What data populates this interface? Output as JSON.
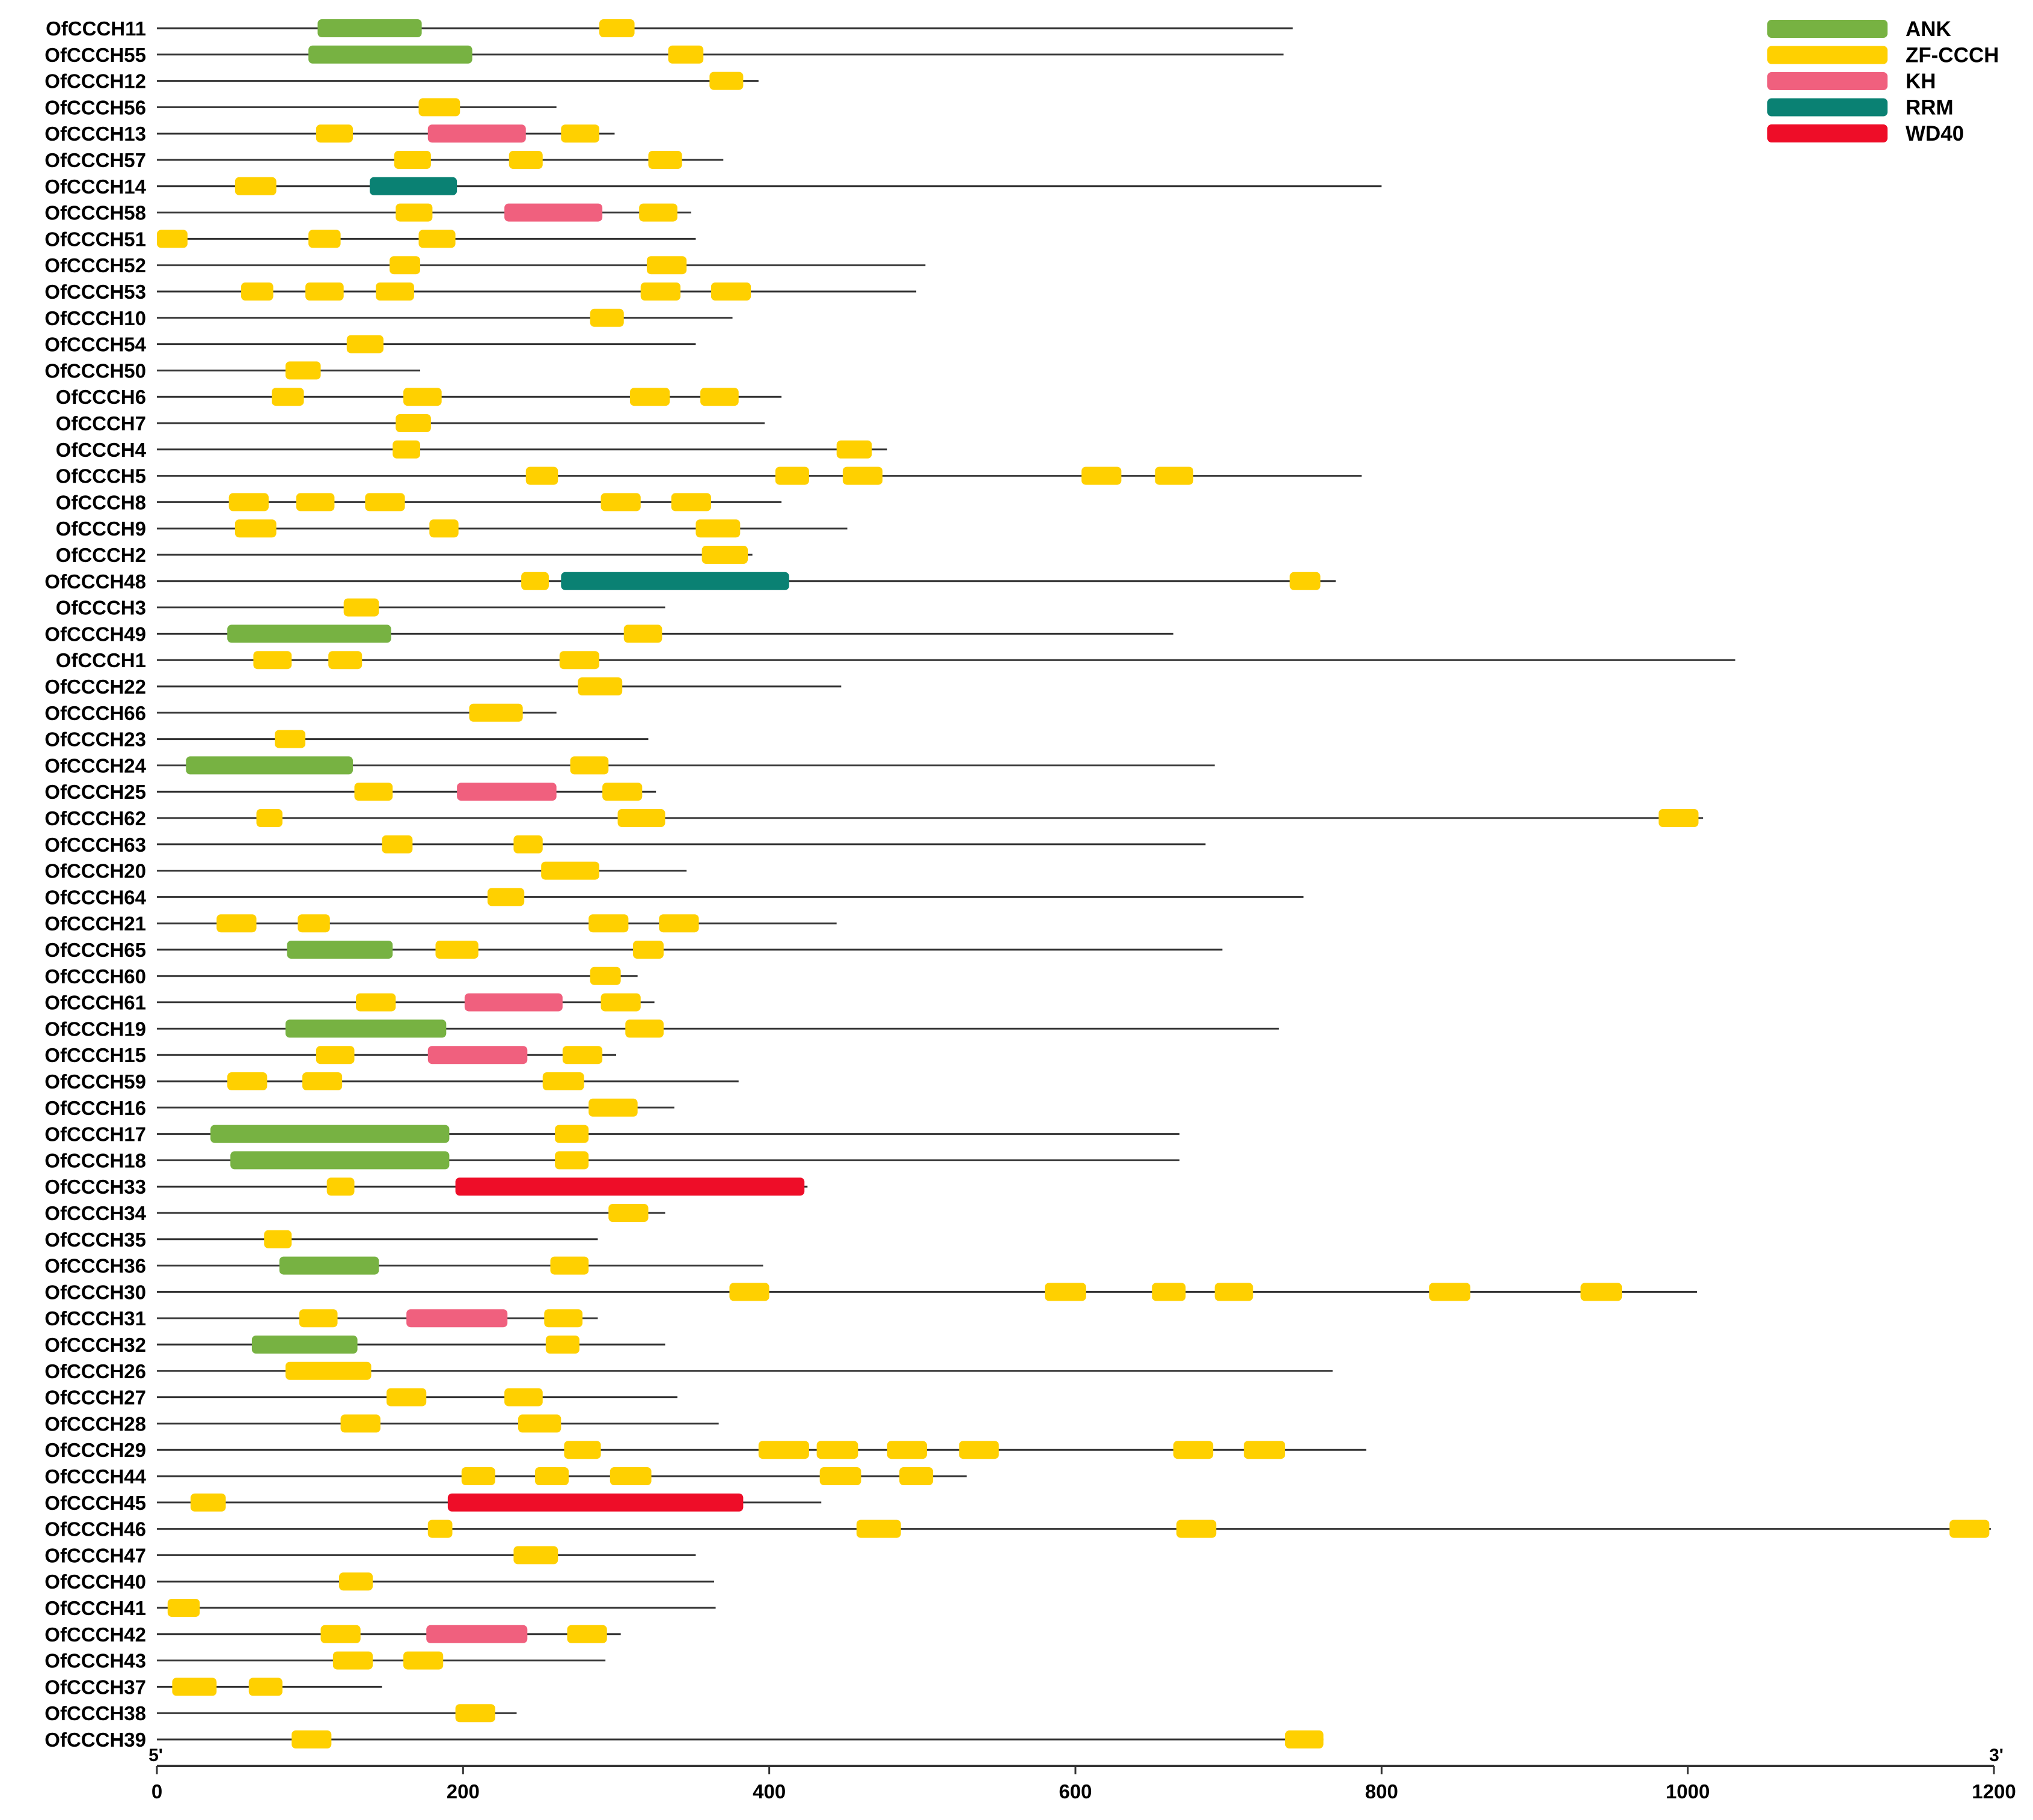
{
  "legend": [
    {
      "name": "ANK",
      "color": "#77b242"
    },
    {
      "name": "ZF-CCCH",
      "color": "#ffd000"
    },
    {
      "name": "KH",
      "color": "#f0607e"
    },
    {
      "name": "RRM",
      "color": "#0a8173"
    },
    {
      "name": "WD40",
      "color": "#ee0d28"
    }
  ],
  "axis": {
    "min": 0,
    "max": 1200,
    "ticks": [
      0,
      200,
      400,
      600,
      800,
      1000,
      1200
    ],
    "tick_labels": [
      "0",
      "200",
      "400",
      "600",
      "800",
      "1000",
      "1200"
    ],
    "left_end_label": "5'",
    "right_end_label": "3'"
  },
  "genes": [
    {
      "name": "OfCCCH11",
      "length": 742,
      "domains": [
        [
          "ANK",
          105,
          173
        ],
        [
          "ZF-CCCH",
          289,
          312
        ]
      ]
    },
    {
      "name": "OfCCCH55",
      "length": 736,
      "domains": [
        [
          "ANK",
          99,
          206
        ],
        [
          "ZF-CCCH",
          334,
          357
        ]
      ]
    },
    {
      "name": "OfCCCH12",
      "length": 393,
      "domains": [
        [
          "ZF-CCCH",
          361,
          383
        ]
      ]
    },
    {
      "name": "OfCCCH56",
      "length": 261,
      "domains": [
        [
          "ZF-CCCH",
          171,
          198
        ]
      ]
    },
    {
      "name": "OfCCCH13",
      "length": 299,
      "domains": [
        [
          "ZF-CCCH",
          104,
          128
        ],
        [
          "KH",
          177,
          241
        ],
        [
          "ZF-CCCH",
          264,
          289
        ]
      ]
    },
    {
      "name": "OfCCCH57",
      "length": 370,
      "domains": [
        [
          "ZF-CCCH",
          155,
          179
        ],
        [
          "ZF-CCCH",
          230,
          252
        ],
        [
          "ZF-CCCH",
          321,
          343
        ]
      ]
    },
    {
      "name": "OfCCCH14",
      "length": 800,
      "domains": [
        [
          "ZF-CCCH",
          51,
          78
        ],
        [
          "RRM",
          139,
          196
        ]
      ]
    },
    {
      "name": "OfCCCH58",
      "length": 349,
      "domains": [
        [
          "ZF-CCCH",
          156,
          180
        ],
        [
          "KH",
          227,
          291
        ],
        [
          "ZF-CCCH",
          315,
          340
        ]
      ]
    },
    {
      "name": "OfCCCH51",
      "length": 352,
      "domains": [
        [
          "ZF-CCCH",
          0,
          20
        ],
        [
          "ZF-CCCH",
          99,
          120
        ],
        [
          "ZF-CCCH",
          171,
          195
        ]
      ]
    },
    {
      "name": "OfCCCH52",
      "length": 502,
      "domains": [
        [
          "ZF-CCCH",
          152,
          172
        ],
        [
          "ZF-CCCH",
          320,
          346
        ]
      ]
    },
    {
      "name": "OfCCCH53",
      "length": 496,
      "domains": [
        [
          "ZF-CCCH",
          55,
          76
        ],
        [
          "ZF-CCCH",
          97,
          122
        ],
        [
          "ZF-CCCH",
          143,
          168
        ],
        [
          "ZF-CCCH",
          316,
          342
        ],
        [
          "ZF-CCCH",
          362,
          388
        ]
      ]
    },
    {
      "name": "OfCCCH10",
      "length": 376,
      "domains": [
        [
          "ZF-CCCH",
          283,
          305
        ]
      ]
    },
    {
      "name": "OfCCCH54",
      "length": 352,
      "domains": [
        [
          "ZF-CCCH",
          124,
          148
        ]
      ]
    },
    {
      "name": "OfCCCH50",
      "length": 172,
      "domains": [
        [
          "ZF-CCCH",
          84,
          107
        ]
      ]
    },
    {
      "name": "OfCCCH6",
      "length": 408,
      "domains": [
        [
          "ZF-CCCH",
          75,
          96
        ],
        [
          "ZF-CCCH",
          161,
          186
        ],
        [
          "ZF-CCCH",
          309,
          335
        ],
        [
          "ZF-CCCH",
          355,
          380
        ]
      ]
    },
    {
      "name": "OfCCCH7",
      "length": 397,
      "domains": [
        [
          "ZF-CCCH",
          156,
          179
        ]
      ]
    },
    {
      "name": "OfCCCH4",
      "length": 477,
      "domains": [
        [
          "ZF-CCCH",
          154,
          172
        ],
        [
          "ZF-CCCH",
          444,
          467
        ]
      ]
    },
    {
      "name": "OfCCCH5",
      "length": 787,
      "domains": [
        [
          "ZF-CCCH",
          241,
          262
        ],
        [
          "ZF-CCCH",
          404,
          426
        ],
        [
          "ZF-CCCH",
          448,
          474
        ],
        [
          "ZF-CCCH",
          604,
          630
        ],
        [
          "ZF-CCCH",
          652,
          677
        ]
      ]
    },
    {
      "name": "OfCCCH8",
      "length": 408,
      "domains": [
        [
          "ZF-CCCH",
          47,
          73
        ],
        [
          "ZF-CCCH",
          91,
          116
        ],
        [
          "ZF-CCCH",
          136,
          162
        ],
        [
          "ZF-CCCH",
          290,
          316
        ],
        [
          "ZF-CCCH",
          336,
          362
        ]
      ]
    },
    {
      "name": "OfCCCH9",
      "length": 451,
      "domains": [
        [
          "ZF-CCCH",
          51,
          78
        ],
        [
          "ZF-CCCH",
          178,
          197
        ],
        [
          "ZF-CCCH",
          352,
          381
        ]
      ]
    },
    {
      "name": "OfCCCH2",
      "length": 389,
      "domains": [
        [
          "ZF-CCCH",
          356,
          386
        ]
      ]
    },
    {
      "name": "OfCCCH48",
      "length": 770,
      "domains": [
        [
          "ZF-CCCH",
          238,
          256
        ],
        [
          "RRM",
          264,
          413
        ],
        [
          "ZF-CCCH",
          740,
          760
        ]
      ]
    },
    {
      "name": "OfCCCH3",
      "length": 332,
      "domains": [
        [
          "ZF-CCCH",
          122,
          145
        ]
      ]
    },
    {
      "name": "OfCCCH49",
      "length": 664,
      "domains": [
        [
          "ANK",
          46,
          153
        ],
        [
          "ZF-CCCH",
          305,
          330
        ]
      ]
    },
    {
      "name": "OfCCCH1",
      "length": 1031,
      "domains": [
        [
          "ZF-CCCH",
          63,
          88
        ],
        [
          "ZF-CCCH",
          112,
          134
        ],
        [
          "ZF-CCCH",
          263,
          289
        ]
      ]
    },
    {
      "name": "OfCCCH22",
      "length": 447,
      "domains": [
        [
          "ZF-CCCH",
          275,
          304
        ]
      ]
    },
    {
      "name": "OfCCCH66",
      "length": 261,
      "domains": [
        [
          "ZF-CCCH",
          204,
          239
        ]
      ]
    },
    {
      "name": "OfCCCH23",
      "length": 321,
      "domains": [
        [
          "ZF-CCCH",
          77,
          97
        ]
      ]
    },
    {
      "name": "OfCCCH24",
      "length": 691,
      "domains": [
        [
          "ANK",
          19,
          128
        ],
        [
          "ZF-CCCH",
          270,
          295
        ]
      ]
    },
    {
      "name": "OfCCCH25",
      "length": 326,
      "domains": [
        [
          "ZF-CCCH",
          129,
          154
        ],
        [
          "KH",
          196,
          261
        ],
        [
          "ZF-CCCH",
          291,
          317
        ]
      ]
    },
    {
      "name": "OfCCCH62",
      "length": 1010,
      "domains": [
        [
          "ZF-CCCH",
          65,
          82
        ],
        [
          "ZF-CCCH",
          301,
          332
        ],
        [
          "ZF-CCCH",
          981,
          1007
        ]
      ]
    },
    {
      "name": "OfCCCH63",
      "length": 685,
      "domains": [
        [
          "ZF-CCCH",
          147,
          167
        ],
        [
          "ZF-CCCH",
          233,
          252
        ]
      ]
    },
    {
      "name": "OfCCCH20",
      "length": 346,
      "domains": [
        [
          "ZF-CCCH",
          251,
          289
        ]
      ]
    },
    {
      "name": "OfCCCH64",
      "length": 749,
      "domains": [
        [
          "ZF-CCCH",
          216,
          240
        ]
      ]
    },
    {
      "name": "OfCCCH21",
      "length": 444,
      "domains": [
        [
          "ZF-CCCH",
          39,
          65
        ],
        [
          "ZF-CCCH",
          92,
          113
        ],
        [
          "ZF-CCCH",
          282,
          308
        ],
        [
          "ZF-CCCH",
          328,
          354
        ]
      ]
    },
    {
      "name": "OfCCCH65",
      "length": 696,
      "domains": [
        [
          "ANK",
          85,
          154
        ],
        [
          "ZF-CCCH",
          182,
          210
        ],
        [
          "ZF-CCCH",
          311,
          331
        ]
      ]
    },
    {
      "name": "OfCCCH60",
      "length": 314,
      "domains": [
        [
          "ZF-CCCH",
          283,
          303
        ]
      ]
    },
    {
      "name": "OfCCCH61",
      "length": 325,
      "domains": [
        [
          "ZF-CCCH",
          130,
          156
        ],
        [
          "KH",
          201,
          265
        ],
        [
          "ZF-CCCH",
          290,
          316
        ]
      ]
    },
    {
      "name": "OfCCCH19",
      "length": 733,
      "domains": [
        [
          "ANK",
          84,
          189
        ],
        [
          "ZF-CCCH",
          306,
          331
        ]
      ]
    },
    {
      "name": "OfCCCH15",
      "length": 300,
      "domains": [
        [
          "ZF-CCCH",
          104,
          129
        ],
        [
          "KH",
          177,
          242
        ],
        [
          "ZF-CCCH",
          265,
          291
        ]
      ]
    },
    {
      "name": "OfCCCH59",
      "length": 380,
      "domains": [
        [
          "ZF-CCCH",
          46,
          72
        ],
        [
          "ZF-CCCH",
          95,
          121
        ],
        [
          "ZF-CCCH",
          252,
          279
        ]
      ]
    },
    {
      "name": "OfCCCH16",
      "length": 338,
      "domains": [
        [
          "ZF-CCCH",
          282,
          314
        ]
      ]
    },
    {
      "name": "OfCCCH17",
      "length": 668,
      "domains": [
        [
          "ANK",
          35,
          191
        ],
        [
          "ZF-CCCH",
          260,
          282
        ]
      ]
    },
    {
      "name": "OfCCCH18",
      "length": 668,
      "domains": [
        [
          "ANK",
          48,
          191
        ],
        [
          "ZF-CCCH",
          260,
          282
        ]
      ]
    },
    {
      "name": "OfCCCH33",
      "length": 425,
      "domains": [
        [
          "ZF-CCCH",
          111,
          129
        ],
        [
          "WD40",
          195,
          423
        ]
      ]
    },
    {
      "name": "OfCCCH34",
      "length": 332,
      "domains": [
        [
          "ZF-CCCH",
          295,
          321
        ]
      ]
    },
    {
      "name": "OfCCCH35",
      "length": 288,
      "domains": [
        [
          "ZF-CCCH",
          70,
          88
        ]
      ]
    },
    {
      "name": "OfCCCH36",
      "length": 396,
      "domains": [
        [
          "ANK",
          80,
          145
        ],
        [
          "ZF-CCCH",
          257,
          282
        ]
      ]
    },
    {
      "name": "OfCCCH30",
      "length": 1006,
      "domains": [
        [
          "ZF-CCCH",
          374,
          400
        ],
        [
          "ZF-CCCH",
          580,
          607
        ],
        [
          "ZF-CCCH",
          650,
          672
        ],
        [
          "ZF-CCCH",
          691,
          716
        ],
        [
          "ZF-CCCH",
          831,
          858
        ],
        [
          "ZF-CCCH",
          930,
          957
        ]
      ]
    },
    {
      "name": "OfCCCH31",
      "length": 288,
      "domains": [
        [
          "ZF-CCCH",
          93,
          118
        ],
        [
          "KH",
          163,
          229
        ],
        [
          "ZF-CCCH",
          253,
          278
        ]
      ]
    },
    {
      "name": "OfCCCH32",
      "length": 332,
      "domains": [
        [
          "ANK",
          62,
          131
        ],
        [
          "ZF-CCCH",
          254,
          276
        ]
      ]
    },
    {
      "name": "OfCCCH26",
      "length": 768,
      "domains": [
        [
          "ZF-CCCH",
          84,
          140
        ]
      ]
    },
    {
      "name": "OfCCCH27",
      "length": 340,
      "domains": [
        [
          "ZF-CCCH",
          150,
          176
        ],
        [
          "ZF-CCCH",
          227,
          252
        ]
      ]
    },
    {
      "name": "OfCCCH28",
      "length": 367,
      "domains": [
        [
          "ZF-CCCH",
          120,
          146
        ],
        [
          "ZF-CCCH",
          236,
          264
        ]
      ]
    },
    {
      "name": "OfCCCH29",
      "length": 790,
      "domains": [
        [
          "ZF-CCCH",
          266,
          290
        ],
        [
          "ZF-CCCH",
          393,
          426
        ],
        [
          "ZF-CCCH",
          431,
          458
        ],
        [
          "ZF-CCCH",
          477,
          503
        ],
        [
          "ZF-CCCH",
          524,
          550
        ],
        [
          "ZF-CCCH",
          664,
          690
        ],
        [
          "ZF-CCCH",
          710,
          737
        ]
      ]
    },
    {
      "name": "OfCCCH44",
      "length": 529,
      "domains": [
        [
          "ZF-CCCH",
          199,
          221
        ],
        [
          "ZF-CCCH",
          247,
          269
        ],
        [
          "ZF-CCCH",
          296,
          323
        ],
        [
          "ZF-CCCH",
          433,
          460
        ],
        [
          "ZF-CCCH",
          485,
          507
        ]
      ]
    },
    {
      "name": "OfCCCH45",
      "length": 434,
      "domains": [
        [
          "ZF-CCCH",
          22,
          45
        ],
        [
          "WD40",
          190,
          383
        ]
      ]
    },
    {
      "name": "OfCCCH46",
      "length": 1198,
      "domains": [
        [
          "ZF-CCCH",
          177,
          193
        ],
        [
          "ZF-CCCH",
          457,
          486
        ],
        [
          "ZF-CCCH",
          666,
          692
        ],
        [
          "ZF-CCCH",
          1171,
          1197
        ]
      ]
    },
    {
      "name": "OfCCCH47",
      "length": 352,
      "domains": [
        [
          "ZF-CCCH",
          233,
          262
        ]
      ]
    },
    {
      "name": "OfCCCH40",
      "length": 364,
      "domains": [
        [
          "ZF-CCCH",
          119,
          141
        ]
      ]
    },
    {
      "name": "OfCCCH41",
      "length": 365,
      "domains": [
        [
          "ZF-CCCH",
          7,
          28
        ]
      ]
    },
    {
      "name": "OfCCCH42",
      "length": 303,
      "domains": [
        [
          "ZF-CCCH",
          107,
          133
        ],
        [
          "KH",
          176,
          242
        ],
        [
          "ZF-CCCH",
          268,
          294
        ]
      ]
    },
    {
      "name": "OfCCCH43",
      "length": 293,
      "domains": [
        [
          "ZF-CCCH",
          115,
          141
        ],
        [
          "ZF-CCCH",
          161,
          187
        ]
      ]
    },
    {
      "name": "OfCCCH37",
      "length": 147,
      "domains": [
        [
          "ZF-CCCH",
          10,
          39
        ],
        [
          "ZF-CCCH",
          60,
          82
        ]
      ]
    },
    {
      "name": "OfCCCH38",
      "length": 235,
      "domains": [
        [
          "ZF-CCCH",
          195,
          221
        ]
      ]
    },
    {
      "name": "OfCCCH39",
      "length": 762,
      "domains": [
        [
          "ZF-CCCH",
          88,
          114
        ],
        [
          "ZF-CCCH",
          737,
          762
        ]
      ]
    }
  ]
}
